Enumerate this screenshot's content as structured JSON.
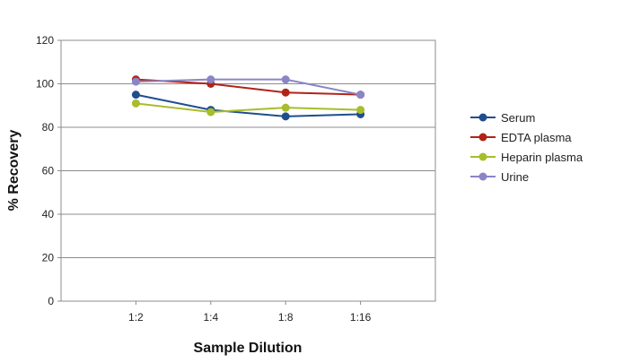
{
  "chart_data": {
    "type": "line",
    "xlabel": "Sample Dilution",
    "ylabel": "% Recovery",
    "categories": [
      "1:2",
      "1:4",
      "1:8",
      "1:16"
    ],
    "ylim": [
      0,
      120
    ],
    "yticks": [
      0,
      20,
      40,
      60,
      80,
      100,
      120
    ],
    "grid": true,
    "legend_position": "right",
    "series": [
      {
        "name": "Serum",
        "color": "#1f4e8c",
        "values": [
          95,
          88,
          85,
          86
        ]
      },
      {
        "name": "EDTA plasma",
        "color": "#b02418",
        "values": [
          102,
          100,
          96,
          95
        ]
      },
      {
        "name": "Heparin plasma",
        "color": "#a8bd2c",
        "values": [
          91,
          87,
          89,
          88
        ]
      },
      {
        "name": "Urine",
        "color": "#8a85c6",
        "values": [
          101,
          102,
          102,
          95
        ]
      }
    ]
  }
}
